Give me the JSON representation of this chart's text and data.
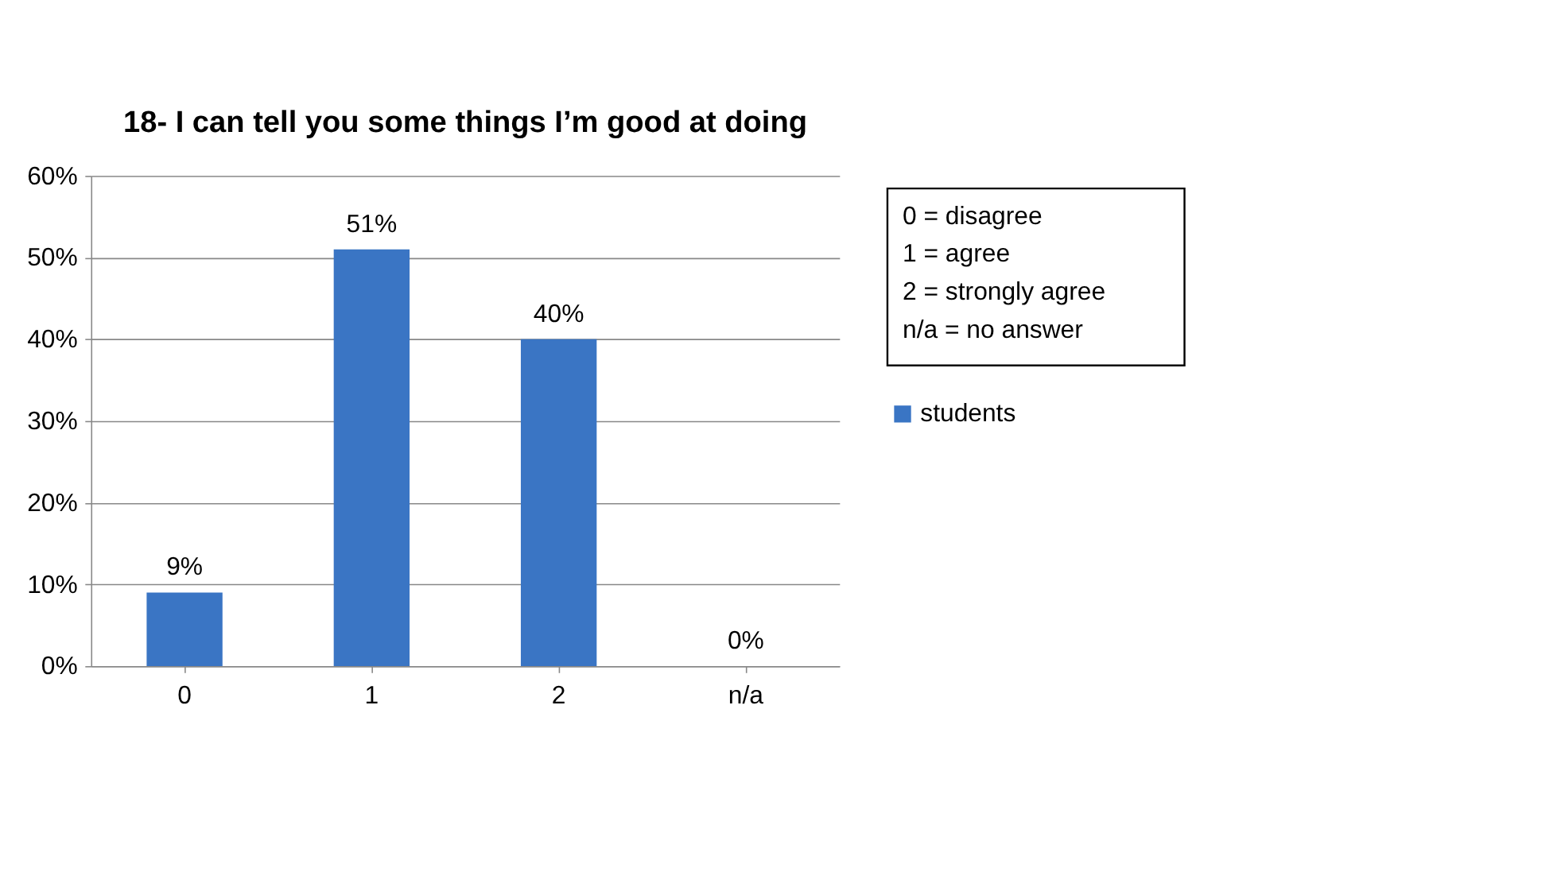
{
  "chart_data": {
    "type": "bar",
    "title": "18- I can tell you some things I’m good at doing",
    "categories": [
      "0",
      "1",
      "2",
      "n/a"
    ],
    "series": [
      {
        "name": "students",
        "color": "#3a75c4",
        "values": [
          9,
          51,
          40,
          0
        ],
        "value_labels": [
          "9%",
          "51%",
          "40%",
          "0%"
        ]
      }
    ],
    "ylim": [
      0,
      60
    ],
    "yticks": [
      {
        "value": 0,
        "label": "0%"
      },
      {
        "value": 10,
        "label": "10%"
      },
      {
        "value": 20,
        "label": "20%"
      },
      {
        "value": 30,
        "label": "30%"
      },
      {
        "value": 40,
        "label": "40%"
      },
      {
        "value": 50,
        "label": "50%"
      },
      {
        "value": 60,
        "label": "60%"
      }
    ],
    "grid": "y",
    "legend": "right",
    "annotations": [
      "0 = disagree",
      "1 = agree",
      "2 = strongly agree",
      "n/a = no answer"
    ]
  }
}
